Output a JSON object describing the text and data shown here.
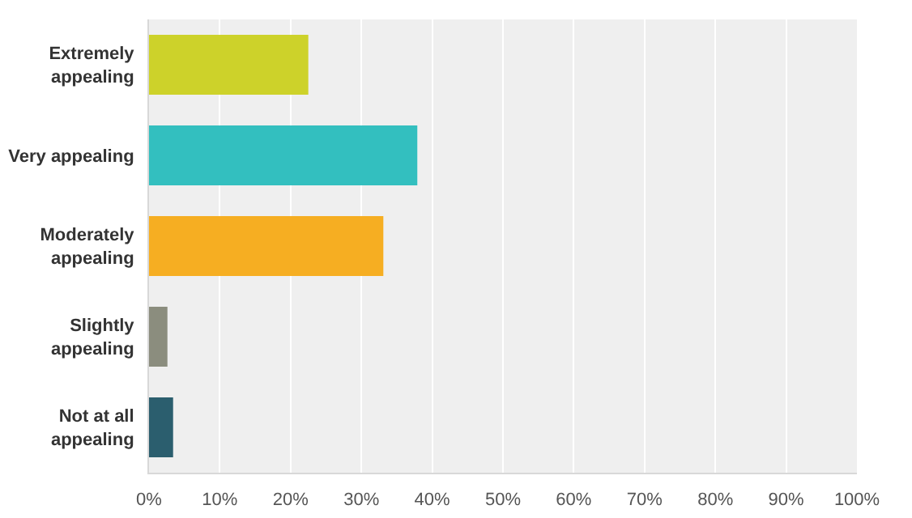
{
  "chart_data": {
    "type": "bar",
    "orientation": "horizontal",
    "categories": [
      "Extremely appealing",
      "Very appealing",
      "Moderately appealing",
      "Slightly appealing",
      "Not at all appealing"
    ],
    "values": [
      22.5,
      37.9,
      33.1,
      2.6,
      3.4
    ],
    "colors": [
      "#cdd22a",
      "#33bfbf",
      "#f6ae22",
      "#8b8d7e",
      "#2b5e6e"
    ],
    "xlim": [
      0,
      100
    ],
    "xticks": [
      {
        "value": 0,
        "label": "0%"
      },
      {
        "value": 10,
        "label": "10%"
      },
      {
        "value": 20,
        "label": "20%"
      },
      {
        "value": 30,
        "label": "30%"
      },
      {
        "value": 40,
        "label": "40%"
      },
      {
        "value": 50,
        "label": "50%"
      },
      {
        "value": 60,
        "label": "60%"
      },
      {
        "value": 70,
        "label": "70%"
      },
      {
        "value": 80,
        "label": "80%"
      },
      {
        "value": 90,
        "label": "90%"
      },
      {
        "value": 100,
        "label": "100%"
      }
    ],
    "grid": "x"
  }
}
